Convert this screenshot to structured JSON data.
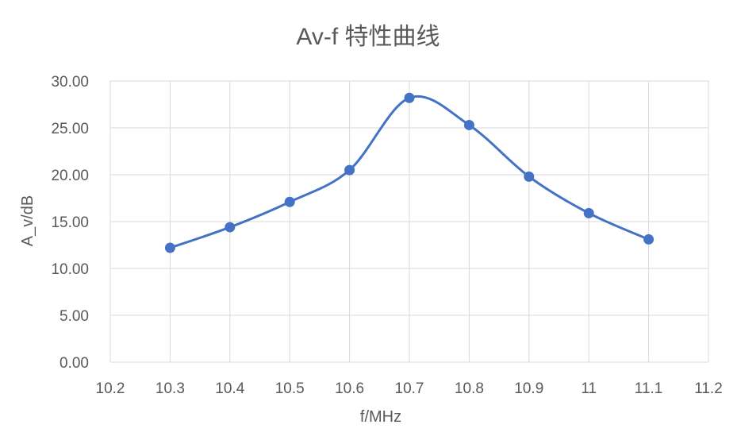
{
  "chart_data": {
    "type": "scatter",
    "title": "Av-f 特性曲线",
    "xlabel": "f/MHz",
    "ylabel": "A_v/dB",
    "xlim": [
      10.2,
      11.2
    ],
    "ylim": [
      0,
      30
    ],
    "x_ticks": [
      "10.2",
      "10.3",
      "10.4",
      "10.5",
      "10.6",
      "10.7",
      "10.8",
      "10.9",
      "11",
      "11.1",
      "11.2"
    ],
    "y_ticks": [
      "0.00",
      "5.00",
      "10.00",
      "15.00",
      "20.00",
      "25.00",
      "30.00"
    ],
    "grid": true,
    "legend": "none",
    "line_style": "smooth",
    "color": "#4472c4",
    "series": [
      {
        "x": [
          10.3,
          10.4,
          10.5,
          10.6,
          10.7,
          10.8,
          10.9,
          11.0,
          11.1
        ],
        "y": [
          12.2,
          14.4,
          17.1,
          20.5,
          28.2,
          25.3,
          19.8,
          15.9,
          13.1
        ]
      }
    ]
  }
}
